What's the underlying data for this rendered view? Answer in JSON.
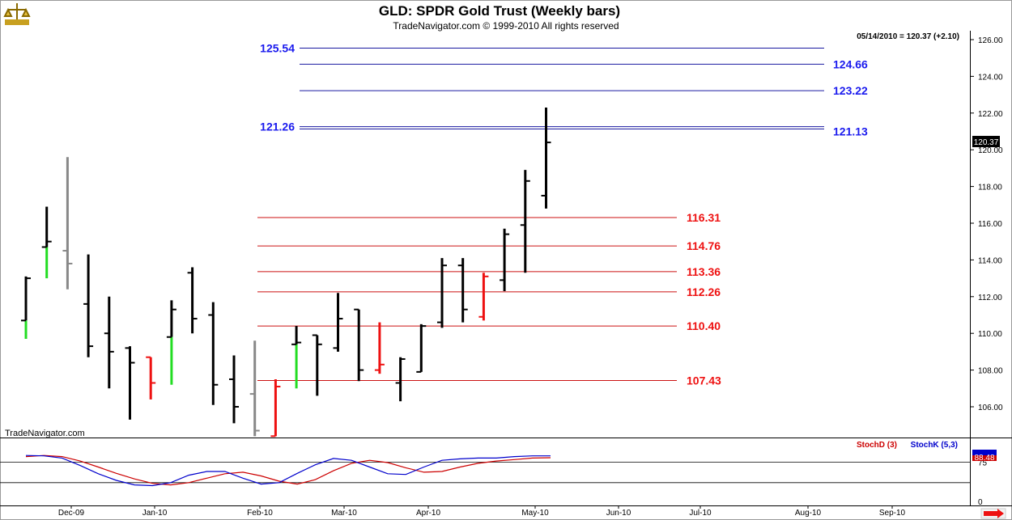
{
  "header": {
    "title": "GLD:  SPDR Gold Trust  (Weekly bars)",
    "copyright": "TradeNavigator.com © 1999-2010 All rights reserved",
    "quote": "05/14/2010 = 120.37 (+2.10)",
    "watermark": "TradeNavigator.com",
    "last_price": "120.37"
  },
  "colors": {
    "up_bar": "#000000",
    "down_bar": "#000000",
    "green": "#22dd22",
    "red": "#ee1111",
    "gray": "#888888",
    "blue_line": "#1a1aa0",
    "red_line": "#cc1111",
    "stoch_d": "#cc0000",
    "stoch_k": "#0000cc"
  },
  "chart_data": [
    {
      "type": "ohlc",
      "x_labels": [
        "Dec-09",
        "Jan-10",
        "Feb-10",
        "Mar-10",
        "Apr-10",
        "May-10",
        "Jun-10",
        "Jul-10",
        "Aug-10",
        "Sep-10"
      ],
      "y_ticks": [
        "106.00",
        "108.00",
        "110.00",
        "112.00",
        "114.00",
        "116.00",
        "118.00",
        "120.00",
        "122.00",
        "124.00",
        "126.00"
      ],
      "ylim": [
        104.4,
        126.6
      ],
      "bars": [
        {
          "week": 0,
          "open": 110.7,
          "high": 113.1,
          "low": 109.7,
          "close": 113.0,
          "color": "mixed_green"
        },
        {
          "week": 1,
          "open": 114.7,
          "high": 116.9,
          "low": 113.0,
          "close": 115.0,
          "color": "mixed_green"
        },
        {
          "week": 2,
          "open": 114.5,
          "high": 119.6,
          "low": 112.4,
          "close": 113.8,
          "color": "gray"
        },
        {
          "week": 3,
          "open": 111.6,
          "high": 114.3,
          "low": 108.7,
          "close": 109.3,
          "color": "black"
        },
        {
          "week": 4,
          "open": 110.0,
          "high": 112.0,
          "low": 107.0,
          "close": 109.0,
          "color": "black"
        },
        {
          "week": 5,
          "open": 109.2,
          "high": 109.3,
          "low": 105.3,
          "close": 108.4,
          "color": "black"
        },
        {
          "week": 6,
          "open": 108.7,
          "high": 108.7,
          "low": 106.4,
          "close": 107.3,
          "color": "red"
        },
        {
          "week": 7,
          "open": 109.8,
          "high": 111.8,
          "low": 107.2,
          "close": 111.3,
          "color": "mixed_green"
        },
        {
          "week": 8,
          "open": 113.3,
          "high": 113.6,
          "low": 110.0,
          "close": 110.8,
          "color": "black"
        },
        {
          "week": 9,
          "open": 111.0,
          "high": 111.7,
          "low": 106.1,
          "close": 107.2,
          "color": "black"
        },
        {
          "week": 10,
          "open": 107.5,
          "high": 108.8,
          "low": 105.1,
          "close": 106.0,
          "color": "black"
        },
        {
          "week": 11,
          "open": 106.7,
          "high": 109.6,
          "low": 104.4,
          "close": 104.7,
          "color": "gray"
        },
        {
          "week": 12,
          "open": 104.4,
          "high": 107.5,
          "low": 104.4,
          "close": 107.1,
          "color": "red"
        },
        {
          "week": 13,
          "open": 109.4,
          "high": 110.4,
          "low": 107.0,
          "close": 109.5,
          "color": "mixed_green"
        },
        {
          "week": 14,
          "open": 109.9,
          "high": 109.9,
          "low": 106.6,
          "close": 109.4,
          "color": "black"
        },
        {
          "week": 15,
          "open": 109.2,
          "high": 112.2,
          "low": 109.0,
          "close": 110.8,
          "color": "black"
        },
        {
          "week": 16,
          "open": 111.3,
          "high": 111.3,
          "low": 107.4,
          "close": 108.0,
          "color": "black"
        },
        {
          "week": 17,
          "open": 108.0,
          "high": 110.6,
          "low": 107.8,
          "close": 108.3,
          "color": "red"
        },
        {
          "week": 18,
          "open": 107.3,
          "high": 108.7,
          "low": 106.3,
          "close": 108.6,
          "color": "black"
        },
        {
          "week": 19,
          "open": 107.9,
          "high": 110.5,
          "low": 107.9,
          "close": 110.4,
          "color": "black"
        },
        {
          "week": 20,
          "open": 110.6,
          "high": 114.1,
          "low": 110.3,
          "close": 113.7,
          "color": "black"
        },
        {
          "week": 21,
          "open": 113.7,
          "high": 114.1,
          "low": 110.6,
          "close": 111.3,
          "color": "black"
        },
        {
          "week": 22,
          "open": 110.9,
          "high": 113.3,
          "low": 110.7,
          "close": 113.1,
          "color": "red"
        },
        {
          "week": 23,
          "open": 112.9,
          "high": 115.7,
          "low": 112.3,
          "close": 115.4,
          "color": "black"
        },
        {
          "week": 24,
          "open": 115.9,
          "high": 118.9,
          "low": 113.3,
          "close": 118.3,
          "color": "black"
        },
        {
          "week": 25,
          "open": 117.5,
          "high": 122.3,
          "low": 116.8,
          "close": 120.4,
          "color": "black"
        }
      ],
      "levels": [
        {
          "value": 125.54,
          "label": "125.54",
          "color": "blue",
          "label_side": "left"
        },
        {
          "value": 124.66,
          "label": "124.66",
          "color": "blue",
          "label_side": "right"
        },
        {
          "value": 123.22,
          "label": "123.22",
          "color": "blue",
          "label_side": "right"
        },
        {
          "value": 121.26,
          "label": "121.26",
          "color": "blue",
          "label_side": "left"
        },
        {
          "value": 121.13,
          "label": "121.13",
          "color": "blue",
          "label_side": "right"
        },
        {
          "value": 116.31,
          "label": "116.31",
          "color": "red",
          "label_side": "right"
        },
        {
          "value": 114.76,
          "label": "114.76",
          "color": "red",
          "label_side": "right"
        },
        {
          "value": 113.36,
          "label": "113.36",
          "color": "red",
          "label_side": "right"
        },
        {
          "value": 112.26,
          "label": "112.26",
          "color": "red",
          "label_side": "right"
        },
        {
          "value": 110.4,
          "label": "110.40",
          "color": "red",
          "label_side": "right"
        },
        {
          "value": 107.43,
          "label": "107.43",
          "color": "red",
          "label_side": "right"
        }
      ]
    },
    {
      "type": "line",
      "legend": [
        {
          "name": "StochD (3)",
          "color": "red"
        },
        {
          "name": "StochK (5,3)",
          "color": "blue"
        }
      ],
      "y_ticks": [
        "0",
        "75"
      ],
      "ylim": [
        0,
        100
      ],
      "reference_lines": [
        20,
        75
      ],
      "last_value": "88.48",
      "series": [
        {
          "name": "StochD (3)",
          "values": [
            90,
            93,
            90,
            78,
            62,
            45,
            30,
            18,
            14,
            20,
            32,
            44,
            48,
            38,
            24,
            16,
            28,
            52,
            72,
            80,
            74,
            60,
            48,
            50,
            62,
            72,
            78,
            82,
            86,
            87
          ]
        },
        {
          "name": "StochK (5,3)",
          "values": [
            93,
            92,
            86,
            66,
            44,
            26,
            14,
            12,
            20,
            40,
            50,
            50,
            32,
            16,
            20,
            45,
            68,
            85,
            80,
            62,
            44,
            42,
            62,
            80,
            84,
            86,
            86,
            90,
            92,
            92
          ]
        }
      ]
    }
  ]
}
